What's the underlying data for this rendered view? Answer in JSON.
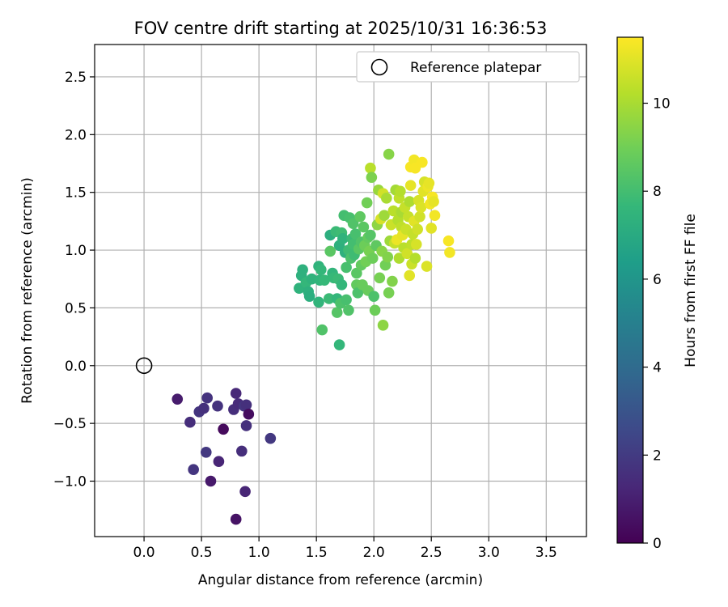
{
  "chart_data": {
    "type": "scatter",
    "title": "FOV centre drift starting at 2025/10/31 16:36:53",
    "xlabel": "Angular distance from reference (arcmin)",
    "ylabel": "Rotation from reference (arcmin)",
    "xlim": [
      -0.43,
      3.85
    ],
    "ylim": [
      -1.48,
      2.78
    ],
    "xticks": [
      0.0,
      0.5,
      1.0,
      1.5,
      2.0,
      2.5,
      3.0,
      3.5
    ],
    "xtick_labels": [
      "0.0",
      "0.5",
      "1.0",
      "1.5",
      "2.0",
      "2.5",
      "3.0",
      "3.5"
    ],
    "yticks": [
      -1.0,
      -0.5,
      0.0,
      0.5,
      1.0,
      1.5,
      2.0,
      2.5
    ],
    "ytick_labels": [
      "−1.0",
      "−0.5",
      "0.0",
      "0.5",
      "1.0",
      "1.5",
      "2.0",
      "2.5"
    ],
    "grid": true,
    "legend": {
      "position": "top-right",
      "entries": [
        "Reference platepar"
      ]
    },
    "reference_point": {
      "x": 0.0,
      "y": 0.0,
      "label": "Reference platepar"
    },
    "colorbar": {
      "label": "Hours from first FF file",
      "range": [
        0,
        11.5
      ],
      "ticks": [
        0,
        2,
        4,
        6,
        8,
        10
      ],
      "tick_labels": [
        "0",
        "2",
        "4",
        "6",
        "8",
        "10"
      ],
      "colormap": "viridis",
      "colormap_stops": [
        "#440154",
        "#482878",
        "#3e4989",
        "#31688e",
        "#26828e",
        "#1f9e89",
        "#35b779",
        "#6ece58",
        "#b5de2b",
        "#fde725"
      ]
    },
    "series": [
      {
        "name": "FOV centre",
        "points": [
          [
            0.29,
            -0.29,
            0.9
          ],
          [
            0.4,
            -0.49,
            1.5
          ],
          [
            0.43,
            -0.9,
            1.8
          ],
          [
            0.48,
            -0.4,
            1.8
          ],
          [
            0.52,
            -0.37,
            1.6
          ],
          [
            0.54,
            -0.75,
            1.9
          ],
          [
            0.55,
            -0.28,
            1.7
          ],
          [
            0.58,
            -1.0,
            0.8
          ],
          [
            0.64,
            -0.35,
            1.7
          ],
          [
            0.65,
            -0.83,
            1.2
          ],
          [
            0.69,
            -0.55,
            0.3
          ],
          [
            0.78,
            -0.38,
            1.5
          ],
          [
            0.8,
            -0.24,
            1.3
          ],
          [
            0.8,
            -1.33,
            0.6
          ],
          [
            0.82,
            -0.33,
            1.4
          ],
          [
            0.85,
            -0.74,
            1.5
          ],
          [
            0.87,
            -0.35,
            1.8
          ],
          [
            0.88,
            -1.09,
            1.2
          ],
          [
            0.89,
            -0.52,
            1.6
          ],
          [
            0.89,
            -0.34,
            1.6
          ],
          [
            0.91,
            -0.42,
            0.4
          ],
          [
            1.1,
            -0.63,
            1.9
          ],
          [
            1.35,
            0.67,
            7.4
          ],
          [
            1.37,
            0.78,
            7.3
          ],
          [
            1.38,
            0.83,
            7.3
          ],
          [
            1.41,
            0.72,
            7.6
          ],
          [
            1.43,
            0.64,
            7.3
          ],
          [
            1.44,
            0.6,
            7.2
          ],
          [
            1.46,
            0.75,
            7.4
          ],
          [
            1.52,
            0.55,
            7.5
          ],
          [
            1.52,
            0.86,
            7.4
          ],
          [
            1.53,
            0.74,
            7.5
          ],
          [
            1.54,
            0.83,
            7.6
          ],
          [
            1.55,
            0.31,
            8.3
          ],
          [
            1.57,
            0.74,
            7.7
          ],
          [
            1.61,
            0.58,
            7.8
          ],
          [
            1.62,
            0.99,
            8.5
          ],
          [
            1.62,
            1.13,
            7.2
          ],
          [
            1.64,
            0.8,
            7.5
          ],
          [
            1.65,
            0.76,
            7.7
          ],
          [
            1.67,
            1.16,
            7.8
          ],
          [
            1.68,
            0.46,
            8.4
          ],
          [
            1.68,
            0.58,
            7.6
          ],
          [
            1.69,
            0.75,
            7.8
          ],
          [
            1.7,
            0.18,
            7.6
          ],
          [
            1.7,
            1.04,
            7.3
          ],
          [
            1.71,
            0.54,
            8.2
          ],
          [
            1.72,
            0.7,
            7.6
          ],
          [
            1.72,
            1.15,
            7.9
          ],
          [
            1.73,
            1.1,
            7.4
          ],
          [
            1.74,
            1.3,
            8.0
          ],
          [
            1.75,
            0.98,
            7.3
          ],
          [
            1.76,
            0.57,
            8.1
          ],
          [
            1.76,
            0.85,
            8.1
          ],
          [
            1.78,
            1.0,
            7.9
          ],
          [
            1.78,
            0.48,
            8.3
          ],
          [
            1.79,
            1.28,
            8.1
          ],
          [
            1.8,
            0.93,
            8.2
          ],
          [
            1.81,
            1.1,
            7.8
          ],
          [
            1.82,
            1.05,
            8.0
          ],
          [
            1.82,
            1.23,
            8.3
          ],
          [
            1.83,
            0.96,
            7.9
          ],
          [
            1.84,
            1.14,
            8.1
          ],
          [
            1.85,
            0.7,
            8.7
          ],
          [
            1.85,
            0.8,
            8.5
          ],
          [
            1.86,
            0.63,
            8.2
          ],
          [
            1.87,
            1.01,
            8.5
          ],
          [
            1.88,
            1.29,
            8.6
          ],
          [
            1.89,
            0.87,
            8.7
          ],
          [
            1.89,
            1.07,
            8.3
          ],
          [
            1.9,
            0.7,
            8.8
          ],
          [
            1.91,
            1.2,
            8.5
          ],
          [
            1.92,
            1.04,
            8.9
          ],
          [
            1.93,
            0.9,
            9.0
          ],
          [
            1.94,
            1.41,
            9.0
          ],
          [
            1.95,
            1.11,
            8.7
          ],
          [
            1.95,
            0.65,
            8.8
          ],
          [
            1.96,
            0.99,
            9.1
          ],
          [
            1.97,
            1.13,
            8.4
          ],
          [
            1.97,
            1.71,
            10.3
          ],
          [
            1.98,
            1.63,
            9.2
          ],
          [
            1.99,
            0.93,
            8.9
          ],
          [
            2.0,
            0.6,
            8.2
          ],
          [
            2.01,
            0.48,
            8.9
          ],
          [
            2.02,
            1.04,
            8.6
          ],
          [
            2.03,
            1.22,
            9.5
          ],
          [
            2.04,
            1.52,
            9.7
          ],
          [
            2.05,
            0.76,
            9.1
          ],
          [
            2.06,
            1.27,
            10.8
          ],
          [
            2.07,
            0.99,
            9.4
          ],
          [
            2.08,
            0.35,
            9.5
          ],
          [
            2.08,
            1.49,
            10.7
          ],
          [
            2.09,
            1.3,
            9.8
          ],
          [
            2.1,
            0.87,
            9.0
          ],
          [
            2.11,
            1.45,
            10.0
          ],
          [
            2.12,
            0.94,
            9.3
          ],
          [
            2.13,
            0.63,
            9.1
          ],
          [
            2.13,
            1.83,
            9.4
          ],
          [
            2.14,
            1.08,
            9.8
          ],
          [
            2.15,
            1.22,
            10.6
          ],
          [
            2.16,
            0.73,
            9.3
          ],
          [
            2.17,
            1.34,
            10.3
          ],
          [
            2.18,
            1.06,
            10.5
          ],
          [
            2.19,
            1.52,
            9.9
          ],
          [
            2.2,
            1.09,
            11.2
          ],
          [
            2.21,
            1.26,
            10.2
          ],
          [
            2.22,
            0.93,
            10.1
          ],
          [
            2.22,
            1.45,
            10.4
          ],
          [
            2.23,
            1.51,
            10.2
          ],
          [
            2.24,
            1.2,
            10.4
          ],
          [
            2.24,
            1.33,
            10.0
          ],
          [
            2.25,
            1.13,
            11.1
          ],
          [
            2.26,
            1.02,
            10.3
          ],
          [
            2.27,
            1.37,
            10.5
          ],
          [
            2.28,
            1.18,
            10.6
          ],
          [
            2.29,
            0.97,
            10.7
          ],
          [
            2.3,
            1.29,
            10.5
          ],
          [
            2.31,
            0.78,
            11.0
          ],
          [
            2.31,
            1.42,
            10.1
          ],
          [
            2.32,
            1.72,
            11.4
          ],
          [
            2.32,
            1.56,
            11.1
          ],
          [
            2.33,
            1.05,
            10.4
          ],
          [
            2.33,
            0.88,
            10.6
          ],
          [
            2.34,
            1.14,
            10.5
          ],
          [
            2.35,
            1.78,
            11.3
          ],
          [
            2.35,
            1.25,
            11.0
          ],
          [
            2.36,
            0.93,
            10.2
          ],
          [
            2.36,
            1.71,
            11.4
          ],
          [
            2.37,
            1.05,
            10.8
          ],
          [
            2.38,
            1.18,
            10.7
          ],
          [
            2.39,
            1.43,
            10.8
          ],
          [
            2.4,
            1.29,
            10.7
          ],
          [
            2.41,
            1.37,
            10.9
          ],
          [
            2.42,
            1.76,
            11.4
          ],
          [
            2.43,
            1.51,
            11.0
          ],
          [
            2.44,
            1.59,
            10.8
          ],
          [
            2.46,
            0.86,
            10.9
          ],
          [
            2.47,
            1.55,
            11.2
          ],
          [
            2.48,
            1.58,
            11.1
          ],
          [
            2.49,
            1.4,
            11.3
          ],
          [
            2.5,
            1.19,
            11.0
          ],
          [
            2.51,
            1.46,
            11.4
          ],
          [
            2.52,
            1.42,
            11.1
          ],
          [
            2.53,
            1.3,
            11.3
          ],
          [
            2.65,
            1.08,
            11.4
          ],
          [
            2.66,
            0.98,
            11.3
          ]
        ]
      }
    ]
  }
}
